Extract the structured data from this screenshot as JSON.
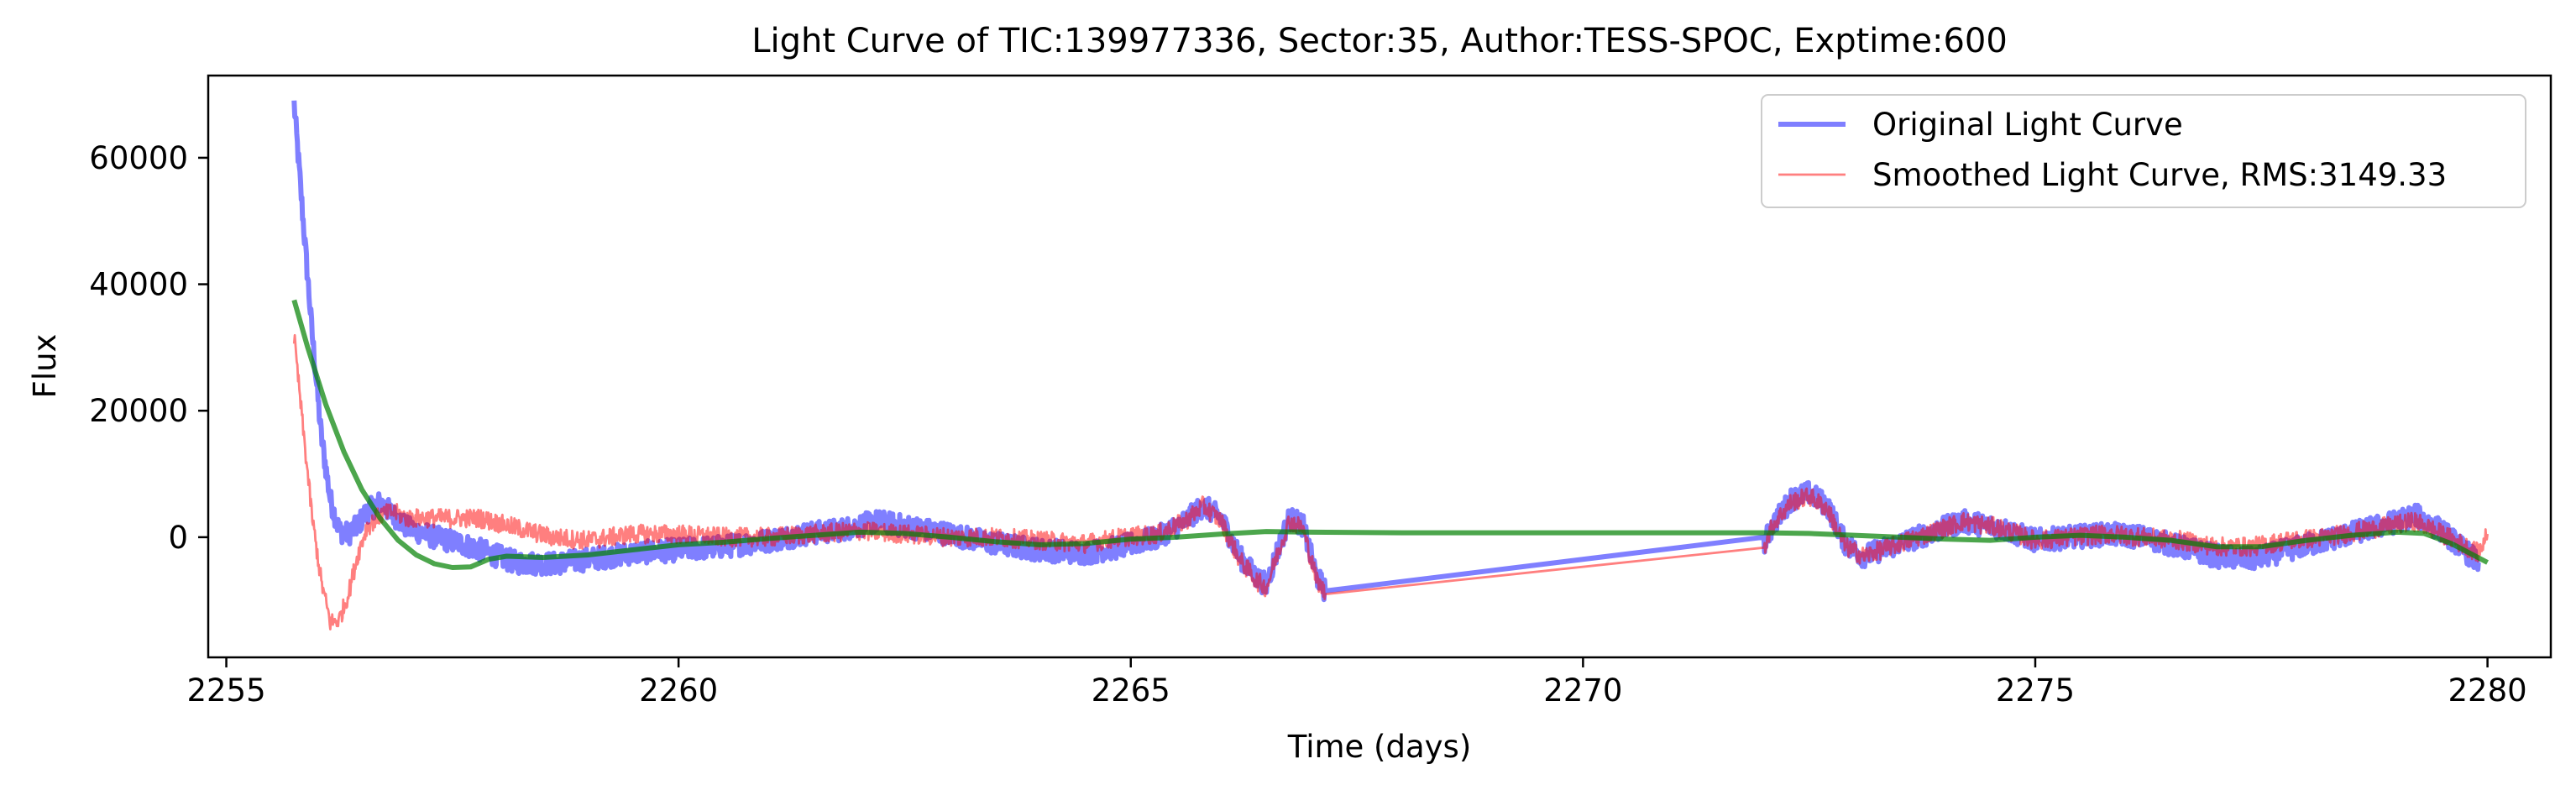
{
  "chart_data": {
    "type": "line",
    "title": "Light Curve of TIC:139977336, Sector:35, Author:TESS-SPOC, Exptime:600",
    "xlabel": "Time (days)",
    "ylabel": "Flux",
    "xlim": [
      2254.8,
      2280.7
    ],
    "ylim": [
      -19000,
      73000
    ],
    "xticks": [
      2255,
      2260,
      2265,
      2270,
      2275,
      2280
    ],
    "yticks": [
      0,
      20000,
      40000,
      60000
    ],
    "grid": false,
    "legend": "top-right",
    "series": [
      {
        "name": "Original Light Curve",
        "color": "#0000ff",
        "opacity": 0.5,
        "style": "thick",
        "noise": 1800,
        "points": [
          [
            2255.75,
            68500
          ],
          [
            2255.85,
            50000
          ],
          [
            2255.95,
            32000
          ],
          [
            2256.05,
            16000
          ],
          [
            2256.15,
            6000
          ],
          [
            2256.25,
            1000
          ],
          [
            2256.35,
            500
          ],
          [
            2256.45,
            1800
          ],
          [
            2256.55,
            4000
          ],
          [
            2256.7,
            5500
          ],
          [
            2256.85,
            3500
          ],
          [
            2257.0,
            1500
          ],
          [
            2257.3,
            0
          ],
          [
            2257.6,
            -1000
          ],
          [
            2257.9,
            -2500
          ],
          [
            2258.2,
            -4000
          ],
          [
            2258.6,
            -4200
          ],
          [
            2259.0,
            -3500
          ],
          [
            2259.5,
            -2500
          ],
          [
            2260.0,
            -2000
          ],
          [
            2260.5,
            -1500
          ],
          [
            2261.0,
            -500
          ],
          [
            2261.4,
            500
          ],
          [
            2261.8,
            1200
          ],
          [
            2262.2,
            2500
          ],
          [
            2262.6,
            1500
          ],
          [
            2263.0,
            500
          ],
          [
            2263.5,
            -1000
          ],
          [
            2264.0,
            -2000
          ],
          [
            2264.5,
            -2500
          ],
          [
            2264.9,
            -1500
          ],
          [
            2265.3,
            0
          ],
          [
            2265.6,
            2500
          ],
          [
            2265.8,
            5000
          ],
          [
            2266.0,
            3000
          ],
          [
            2266.2,
            -3000
          ],
          [
            2266.4,
            -6500
          ],
          [
            2266.5,
            -7500
          ],
          [
            2266.6,
            -3000
          ],
          [
            2266.75,
            3000
          ],
          [
            2266.9,
            2000
          ],
          [
            2267.05,
            -6000
          ],
          [
            2267.15,
            -8500
          ],
          [
            2272.0,
            -1000
          ],
          [
            2272.1,
            2000
          ],
          [
            2272.3,
            6000
          ],
          [
            2272.5,
            7000
          ],
          [
            2272.7,
            5000
          ],
          [
            2272.9,
            -1000
          ],
          [
            2273.1,
            -3000
          ],
          [
            2273.4,
            -1500
          ],
          [
            2273.8,
            500
          ],
          [
            2274.2,
            2500
          ],
          [
            2274.6,
            1500
          ],
          [
            2275.0,
            -500
          ],
          [
            2275.4,
            0
          ],
          [
            2275.8,
            500
          ],
          [
            2276.2,
            0
          ],
          [
            2276.6,
            -1500
          ],
          [
            2277.0,
            -3000
          ],
          [
            2277.4,
            -3500
          ],
          [
            2277.8,
            -2000
          ],
          [
            2278.2,
            -500
          ],
          [
            2278.6,
            1000
          ],
          [
            2279.0,
            2500
          ],
          [
            2279.2,
            3500
          ],
          [
            2279.5,
            1000
          ],
          [
            2279.9,
            -4000
          ]
        ]
      },
      {
        "name": "Smoothed Light Curve, RMS:3149.33",
        "color": "#ff0000",
        "opacity": 0.5,
        "style": "thin",
        "noise": 1500,
        "points": [
          [
            2255.75,
            31500
          ],
          [
            2255.85,
            17000
          ],
          [
            2255.95,
            3000
          ],
          [
            2256.05,
            -7000
          ],
          [
            2256.15,
            -13500
          ],
          [
            2256.25,
            -13000
          ],
          [
            2256.35,
            -9000
          ],
          [
            2256.45,
            -3000
          ],
          [
            2256.55,
            1500
          ],
          [
            2256.7,
            3500
          ],
          [
            2256.85,
            4000
          ],
          [
            2257.0,
            3000
          ],
          [
            2257.4,
            3000
          ],
          [
            2257.8,
            3000
          ],
          [
            2258.2,
            1500
          ],
          [
            2258.6,
            0
          ],
          [
            2259.0,
            -500
          ],
          [
            2259.5,
            500
          ],
          [
            2260.0,
            500
          ],
          [
            2260.5,
            0
          ],
          [
            2261.0,
            0
          ],
          [
            2261.5,
            500
          ],
          [
            2262.0,
            1000
          ],
          [
            2262.5,
            500
          ],
          [
            2263.0,
            0
          ],
          [
            2263.5,
            0
          ],
          [
            2264.0,
            -500
          ],
          [
            2264.5,
            -1000
          ],
          [
            2264.9,
            0
          ],
          [
            2265.3,
            500
          ],
          [
            2265.6,
            2500
          ],
          [
            2265.8,
            5000
          ],
          [
            2266.0,
            2500
          ],
          [
            2266.2,
            -3500
          ],
          [
            2266.4,
            -7000
          ],
          [
            2266.5,
            -8000
          ],
          [
            2266.6,
            -3500
          ],
          [
            2266.75,
            2500
          ],
          [
            2266.9,
            1500
          ],
          [
            2267.05,
            -6500
          ],
          [
            2267.15,
            -9000
          ],
          [
            2272.0,
            -1500
          ],
          [
            2272.1,
            2000
          ],
          [
            2272.3,
            5500
          ],
          [
            2272.5,
            6500
          ],
          [
            2272.7,
            4500
          ],
          [
            2272.9,
            -1500
          ],
          [
            2273.1,
            -3000
          ],
          [
            2273.4,
            -1500
          ],
          [
            2273.8,
            500
          ],
          [
            2274.2,
            2500
          ],
          [
            2274.6,
            1500
          ],
          [
            2275.0,
            -500
          ],
          [
            2275.4,
            0
          ],
          [
            2275.8,
            500
          ],
          [
            2276.2,
            0
          ],
          [
            2276.6,
            -500
          ],
          [
            2277.0,
            -1500
          ],
          [
            2277.4,
            -1500
          ],
          [
            2277.8,
            -500
          ],
          [
            2278.2,
            0
          ],
          [
            2278.6,
            1000
          ],
          [
            2279.0,
            2000
          ],
          [
            2279.2,
            2500
          ],
          [
            2279.5,
            500
          ],
          [
            2279.9,
            -2500
          ],
          [
            2280.0,
            500
          ]
        ]
      },
      {
        "name": "",
        "color": "#008000",
        "opacity": 0.7,
        "style": "medium",
        "noise": 0,
        "points": [
          [
            2255.75,
            37500
          ],
          [
            2255.9,
            30000
          ],
          [
            2256.1,
            21000
          ],
          [
            2256.3,
            13500
          ],
          [
            2256.5,
            7500
          ],
          [
            2256.7,
            3000
          ],
          [
            2256.9,
            -500
          ],
          [
            2257.1,
            -2800
          ],
          [
            2257.3,
            -4200
          ],
          [
            2257.5,
            -4800
          ],
          [
            2257.7,
            -4700
          ],
          [
            2257.9,
            -3500
          ],
          [
            2258.1,
            -3000
          ],
          [
            2258.5,
            -3200
          ],
          [
            2259.0,
            -2800
          ],
          [
            2259.5,
            -2000
          ],
          [
            2260.0,
            -1200
          ],
          [
            2260.5,
            -800
          ],
          [
            2261.0,
            -200
          ],
          [
            2261.5,
            300
          ],
          [
            2262.0,
            800
          ],
          [
            2262.5,
            600
          ],
          [
            2263.0,
            0
          ],
          [
            2263.5,
            -700
          ],
          [
            2264.0,
            -1200
          ],
          [
            2264.5,
            -1000
          ],
          [
            2265.0,
            -300
          ],
          [
            2265.5,
            0
          ],
          [
            2266.0,
            500
          ],
          [
            2266.5,
            900
          ],
          [
            2267.0,
            800
          ],
          [
            2268.0,
            700
          ],
          [
            2270.0,
            700
          ],
          [
            2272.0,
            700
          ],
          [
            2272.5,
            600
          ],
          [
            2273.0,
            300
          ],
          [
            2273.5,
            0
          ],
          [
            2274.0,
            -300
          ],
          [
            2274.5,
            -500
          ],
          [
            2275.0,
            0
          ],
          [
            2275.5,
            300
          ],
          [
            2276.0,
            0
          ],
          [
            2276.5,
            -500
          ],
          [
            2277.0,
            -1500
          ],
          [
            2277.5,
            -1500
          ],
          [
            2278.0,
            -500
          ],
          [
            2278.5,
            300
          ],
          [
            2279.0,
            800
          ],
          [
            2279.3,
            600
          ],
          [
            2279.6,
            -1000
          ],
          [
            2280.0,
            -4000
          ]
        ]
      }
    ]
  }
}
